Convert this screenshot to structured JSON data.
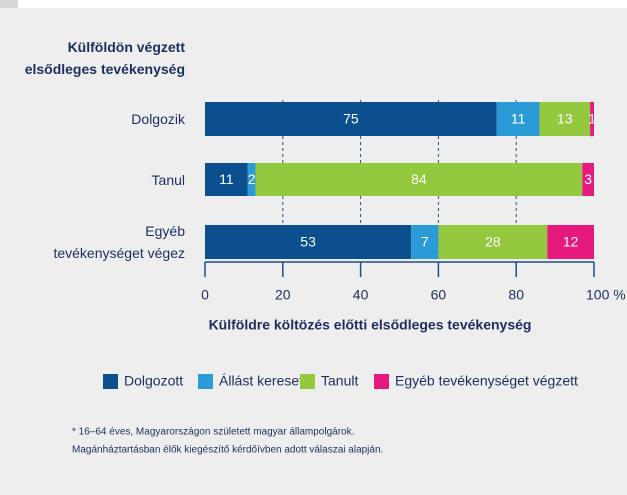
{
  "chart_data": {
    "type": "stacked_barh",
    "y_label": "Külföldön végzett\nelsődleges tevékenység",
    "x_label": "Külföldre költözés előtti elsődleges tevékenység",
    "categories": [
      "Dolgozik",
      "Tanul",
      "Egyéb\ntevékenységet végez"
    ],
    "series": [
      {
        "name": "Dolgozott",
        "color": "#0c4f8e",
        "values": [
          75,
          11,
          53
        ]
      },
      {
        "name": "Állást keresett",
        "color": "#2a9bd6",
        "values": [
          11,
          2,
          7
        ]
      },
      {
        "name": "Tanult",
        "color": "#94c83e",
        "values": [
          13,
          84,
          28
        ]
      },
      {
        "name": "Egyéb tevékenységet végzett",
        "color": "#e6197d",
        "values": [
          1,
          3,
          12
        ]
      }
    ],
    "xlim": [
      0,
      100
    ],
    "xticks": [
      0,
      20,
      40,
      60,
      80,
      {
        "value": 100,
        "label": "100 %"
      }
    ],
    "grid": true,
    "footnote": [
      "* 16–64 éves, Magyarországon született magyar állampolgárok.",
      "Magánháztartásban élők kiegészítő kérdőívben adott válaszai alapján."
    ]
  }
}
